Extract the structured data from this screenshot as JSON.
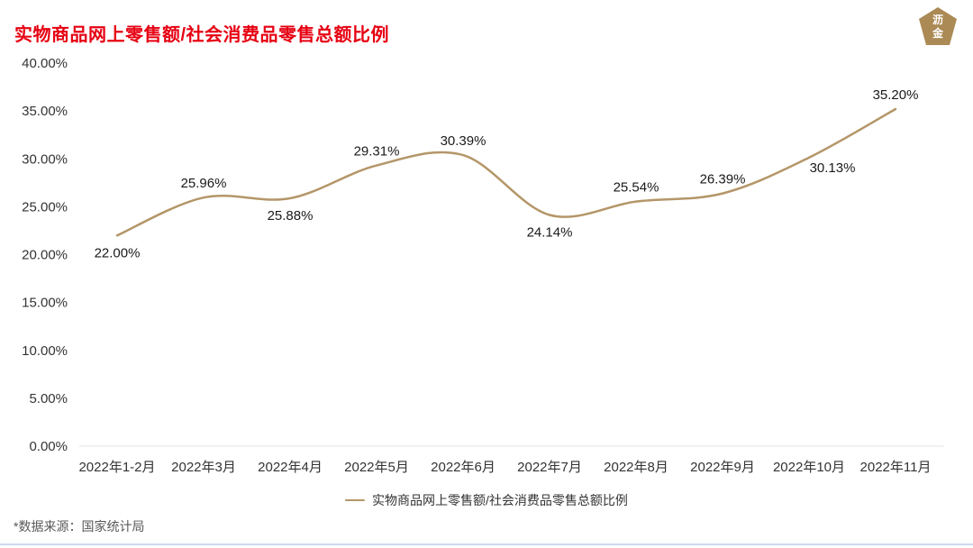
{
  "page": {
    "title": "实物商品网上零售额/社会消费品零售总额比例",
    "title_color": "#e60012",
    "footer": "*数据来源：国家统计局",
    "divider_color": "#ccd9ec",
    "logo": {
      "char_top": "沥",
      "char_bottom": "金",
      "color": "#ab8a55"
    }
  },
  "chart_data": {
    "type": "line",
    "title": "实物商品网上零售额/社会消费品零售总额比例",
    "categories": [
      "2022年1-2月",
      "2022年3月",
      "2022年4月",
      "2022年5月",
      "2022年6月",
      "2022年7月",
      "2022年8月",
      "2022年9月",
      "2022年10月",
      "2022年11月"
    ],
    "series": [
      {
        "name": "实物商品网上零售额/社会消费品零售总额比例",
        "values": [
          22.0,
          25.96,
          25.88,
          29.31,
          30.39,
          24.14,
          25.54,
          26.39,
          30.13,
          35.2
        ]
      }
    ],
    "value_labels": [
      "22.00%",
      "25.96%",
      "25.88%",
      "29.31%",
      "30.39%",
      "24.14%",
      "25.54%",
      "26.39%",
      "30.13%",
      "35.20%"
    ],
    "xlabel": "",
    "ylabel": "",
    "ylim": [
      0,
      40
    ],
    "ytick_step": 5,
    "ytick_labels": [
      "0.00%",
      "5.00%",
      "10.00%",
      "15.00%",
      "20.00%",
      "25.00%",
      "30.00%",
      "35.00%",
      "40.00%"
    ],
    "line_color": "#b49668",
    "grid": false,
    "legend_position": "bottom",
    "label_placement": [
      "below",
      "above",
      "below",
      "above",
      "above",
      "below",
      "above",
      "above",
      "right-below",
      "above"
    ]
  }
}
